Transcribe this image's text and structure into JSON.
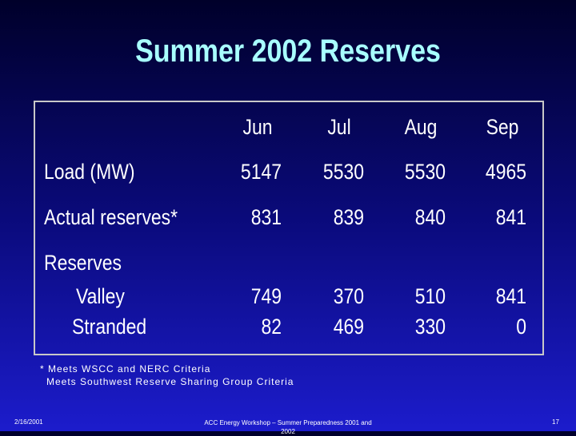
{
  "title": "Summer 2002  Reserves",
  "table": {
    "columns": [
      "Jun",
      "Jul",
      "Aug",
      "Sep"
    ],
    "rows": [
      {
        "label": "Load (MW)",
        "values": [
          5147,
          5530,
          5530,
          4965
        ]
      },
      {
        "label": "Actual reserves*",
        "values": [
          831,
          839,
          840,
          841
        ]
      },
      {
        "label": "Reserves"
      },
      {
        "label": "Valley",
        "values": [
          749,
          370,
          510,
          841
        ]
      },
      {
        "label": "Stranded",
        "values": [
          82,
          469,
          330,
          0
        ]
      }
    ]
  },
  "footnotes": [
    "* Meets WSCC and NERC Criteria",
    "Meets Southwest Reserve Sharing Group Criteria"
  ],
  "footer": {
    "date": "2/16/2001",
    "caption": "ACC Energy Workshop – Summer Preparedness 2001 and 2002",
    "page": "17"
  }
}
